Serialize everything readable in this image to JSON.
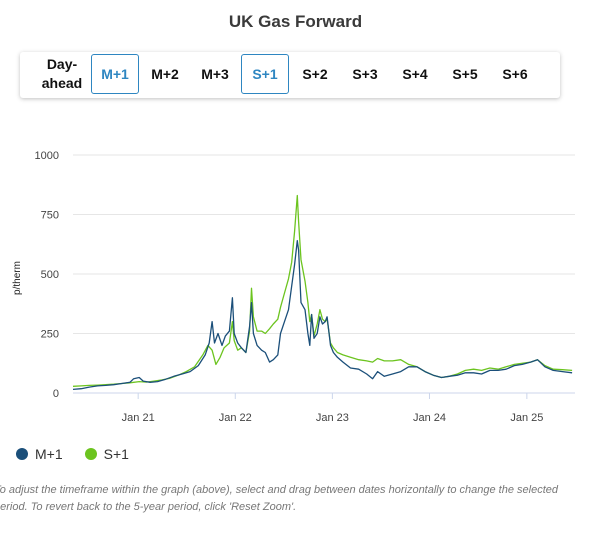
{
  "title": "UK Gas Forward",
  "tabs": [
    {
      "label": "Day-ahead",
      "active": false
    },
    {
      "label": "M+1",
      "active": true
    },
    {
      "label": "M+2",
      "active": false
    },
    {
      "label": "M+3",
      "active": false
    },
    {
      "label": "S+1",
      "active": true
    },
    {
      "label": "S+2",
      "active": false
    },
    {
      "label": "S+3",
      "active": false
    },
    {
      "label": "S+4",
      "active": false
    },
    {
      "label": "S+5",
      "active": false
    },
    {
      "label": "S+6",
      "active": false
    }
  ],
  "note": "To adjust the timeframe within the graph (above), select and drag between dates horizontally to change the selected period. To revert back to the 5-year period, click 'Reset Zoom'.",
  "colors": {
    "m1": "#1b4f7a",
    "s1": "#6cc41f",
    "active_tab": "#2e86c1",
    "grid": "#e6e6e6"
  },
  "chart_data": {
    "type": "line",
    "ylabel": "p/therm",
    "xlabel": "",
    "ylim": [
      0,
      1000
    ],
    "yticks": [
      0,
      250,
      500,
      750,
      1000
    ],
    "xlim": [
      "2020-05-01",
      "2025-07-01"
    ],
    "xticks": [
      {
        "date": "2021-01-01",
        "label": "Jan 21"
      },
      {
        "date": "2022-01-01",
        "label": "Jan 22"
      },
      {
        "date": "2023-01-01",
        "label": "Jan 23"
      },
      {
        "date": "2024-01-01",
        "label": "Jan 24"
      },
      {
        "date": "2025-01-01",
        "label": "Jan 25"
      }
    ],
    "grid": true,
    "legend_position": "bottom-left",
    "series": [
      {
        "name": "M+1",
        "color": "#1b4f7a",
        "points": [
          [
            "2020-05-01",
            15
          ],
          [
            "2020-06-01",
            18
          ],
          [
            "2020-07-01",
            25
          ],
          [
            "2020-08-01",
            30
          ],
          [
            "2020-09-01",
            32
          ],
          [
            "2020-10-01",
            35
          ],
          [
            "2020-11-01",
            40
          ],
          [
            "2020-12-01",
            45
          ],
          [
            "2020-12-15",
            60
          ],
          [
            "2021-01-05",
            65
          ],
          [
            "2021-01-20",
            50
          ],
          [
            "2021-02-15",
            45
          ],
          [
            "2021-03-15",
            48
          ],
          [
            "2021-04-15",
            58
          ],
          [
            "2021-05-15",
            70
          ],
          [
            "2021-06-15",
            80
          ],
          [
            "2021-07-15",
            90
          ],
          [
            "2021-08-15",
            115
          ],
          [
            "2021-09-10",
            160
          ],
          [
            "2021-09-25",
            210
          ],
          [
            "2021-10-06",
            300
          ],
          [
            "2021-10-15",
            210
          ],
          [
            "2021-10-28",
            250
          ],
          [
            "2021-11-12",
            200
          ],
          [
            "2021-11-25",
            240
          ],
          [
            "2021-12-10",
            260
          ],
          [
            "2021-12-21",
            400
          ],
          [
            "2021-12-28",
            250
          ],
          [
            "2022-01-10",
            210
          ],
          [
            "2022-01-24",
            190
          ],
          [
            "2022-02-10",
            170
          ],
          [
            "2022-02-24",
            280
          ],
          [
            "2022-03-03",
            380
          ],
          [
            "2022-03-10",
            250
          ],
          [
            "2022-03-24",
            200
          ],
          [
            "2022-04-10",
            180
          ],
          [
            "2022-04-24",
            170
          ],
          [
            "2022-05-10",
            130
          ],
          [
            "2022-05-24",
            140
          ],
          [
            "2022-06-10",
            160
          ],
          [
            "2022-06-20",
            250
          ],
          [
            "2022-07-05",
            300
          ],
          [
            "2022-07-20",
            350
          ],
          [
            "2022-08-01",
            450
          ],
          [
            "2022-08-12",
            540
          ],
          [
            "2022-08-22",
            640
          ],
          [
            "2022-08-27",
            600
          ],
          [
            "2022-09-05",
            380
          ],
          [
            "2022-09-20",
            350
          ],
          [
            "2022-10-01",
            250
          ],
          [
            "2022-10-08",
            200
          ],
          [
            "2022-10-15",
            330
          ],
          [
            "2022-10-24",
            230
          ],
          [
            "2022-11-05",
            250
          ],
          [
            "2022-11-15",
            320
          ],
          [
            "2022-11-25",
            290
          ],
          [
            "2022-12-05",
            300
          ],
          [
            "2022-12-12",
            320
          ],
          [
            "2022-12-25",
            200
          ],
          [
            "2023-01-05",
            170
          ],
          [
            "2023-01-20",
            150
          ],
          [
            "2023-02-10",
            130
          ],
          [
            "2023-03-10",
            105
          ],
          [
            "2023-04-10",
            100
          ],
          [
            "2023-05-10",
            80
          ],
          [
            "2023-06-01",
            60
          ],
          [
            "2023-06-20",
            90
          ],
          [
            "2023-07-15",
            70
          ],
          [
            "2023-08-15",
            80
          ],
          [
            "2023-09-15",
            90
          ],
          [
            "2023-10-15",
            110
          ],
          [
            "2023-11-15",
            110
          ],
          [
            "2023-12-15",
            90
          ],
          [
            "2024-01-15",
            75
          ],
          [
            "2024-02-15",
            65
          ],
          [
            "2024-03-15",
            70
          ],
          [
            "2024-04-15",
            75
          ],
          [
            "2024-05-15",
            85
          ],
          [
            "2024-06-15",
            85
          ],
          [
            "2024-07-15",
            80
          ],
          [
            "2024-08-15",
            95
          ],
          [
            "2024-09-15",
            95
          ],
          [
            "2024-10-15",
            100
          ],
          [
            "2024-11-15",
            115
          ],
          [
            "2024-12-15",
            120
          ],
          [
            "2025-01-15",
            130
          ],
          [
            "2025-02-10",
            140
          ],
          [
            "2025-03-10",
            110
          ],
          [
            "2025-04-10",
            95
          ],
          [
            "2025-05-15",
            90
          ],
          [
            "2025-06-20",
            85
          ]
        ]
      },
      {
        "name": "S+1",
        "color": "#6cc41f",
        "points": [
          [
            "2020-05-01",
            28
          ],
          [
            "2020-06-01",
            30
          ],
          [
            "2020-07-01",
            32
          ],
          [
            "2020-08-01",
            33
          ],
          [
            "2020-09-01",
            35
          ],
          [
            "2020-10-01",
            37
          ],
          [
            "2020-11-01",
            40
          ],
          [
            "2020-12-01",
            43
          ],
          [
            "2021-01-05",
            48
          ],
          [
            "2021-02-01",
            46
          ],
          [
            "2021-03-01",
            50
          ],
          [
            "2021-04-01",
            55
          ],
          [
            "2021-05-01",
            62
          ],
          [
            "2021-06-01",
            75
          ],
          [
            "2021-07-01",
            90
          ],
          [
            "2021-08-01",
            110
          ],
          [
            "2021-09-01",
            160
          ],
          [
            "2021-09-20",
            200
          ],
          [
            "2021-10-06",
            180
          ],
          [
            "2021-10-20",
            120
          ],
          [
            "2021-11-05",
            150
          ],
          [
            "2021-11-20",
            190
          ],
          [
            "2021-12-10",
            210
          ],
          [
            "2021-12-21",
            300
          ],
          [
            "2021-12-28",
            220
          ],
          [
            "2022-01-10",
            180
          ],
          [
            "2022-01-24",
            190
          ],
          [
            "2022-02-10",
            170
          ],
          [
            "2022-02-24",
            260
          ],
          [
            "2022-03-03",
            440
          ],
          [
            "2022-03-10",
            320
          ],
          [
            "2022-03-24",
            260
          ],
          [
            "2022-04-10",
            260
          ],
          [
            "2022-04-24",
            250
          ],
          [
            "2022-05-10",
            270
          ],
          [
            "2022-05-24",
            290
          ],
          [
            "2022-06-10",
            310
          ],
          [
            "2022-06-20",
            360
          ],
          [
            "2022-07-05",
            420
          ],
          [
            "2022-07-20",
            480
          ],
          [
            "2022-08-01",
            550
          ],
          [
            "2022-08-12",
            680
          ],
          [
            "2022-08-22",
            830
          ],
          [
            "2022-08-27",
            720
          ],
          [
            "2022-09-05",
            560
          ],
          [
            "2022-09-20",
            470
          ],
          [
            "2022-10-01",
            380
          ],
          [
            "2022-10-08",
            300
          ],
          [
            "2022-10-15",
            330
          ],
          [
            "2022-10-24",
            240
          ],
          [
            "2022-11-05",
            290
          ],
          [
            "2022-11-15",
            350
          ],
          [
            "2022-11-25",
            310
          ],
          [
            "2022-12-05",
            300
          ],
          [
            "2022-12-12",
            310
          ],
          [
            "2022-12-25",
            210
          ],
          [
            "2023-01-05",
            190
          ],
          [
            "2023-01-20",
            170
          ],
          [
            "2023-02-10",
            160
          ],
          [
            "2023-03-10",
            150
          ],
          [
            "2023-04-10",
            140
          ],
          [
            "2023-05-10",
            135
          ],
          [
            "2023-06-01",
            130
          ],
          [
            "2023-06-20",
            145
          ],
          [
            "2023-07-15",
            135
          ],
          [
            "2023-08-15",
            135
          ],
          [
            "2023-09-15",
            140
          ],
          [
            "2023-10-15",
            120
          ],
          [
            "2023-11-15",
            110
          ],
          [
            "2023-12-15",
            90
          ],
          [
            "2024-01-15",
            75
          ],
          [
            "2024-02-15",
            65
          ],
          [
            "2024-03-15",
            70
          ],
          [
            "2024-04-15",
            80
          ],
          [
            "2024-05-15",
            95
          ],
          [
            "2024-06-15",
            100
          ],
          [
            "2024-07-15",
            95
          ],
          [
            "2024-08-15",
            105
          ],
          [
            "2024-09-15",
            100
          ],
          [
            "2024-10-15",
            110
          ],
          [
            "2024-11-15",
            120
          ],
          [
            "2024-12-15",
            125
          ],
          [
            "2025-01-15",
            130
          ],
          [
            "2025-02-10",
            140
          ],
          [
            "2025-03-10",
            115
          ],
          [
            "2025-04-10",
            100
          ],
          [
            "2025-05-15",
            98
          ],
          [
            "2025-06-20",
            95
          ]
        ]
      }
    ]
  }
}
